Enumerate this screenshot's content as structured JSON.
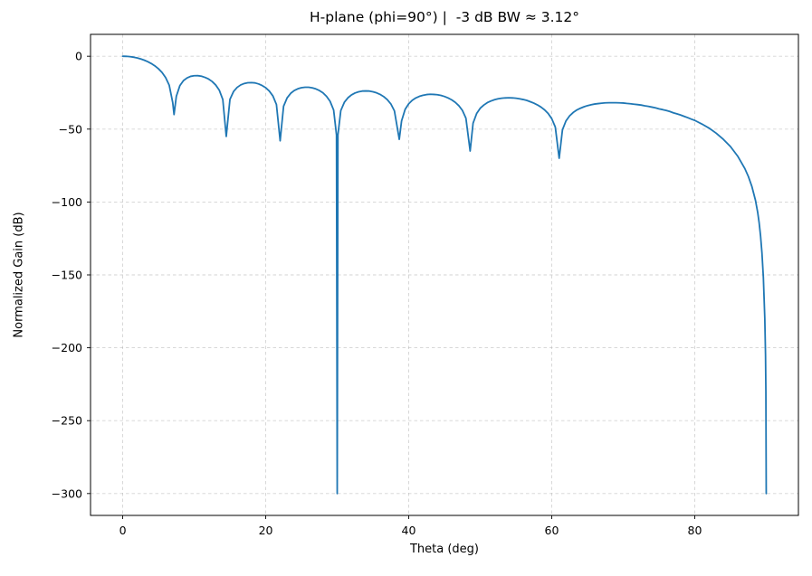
{
  "figure": {
    "background": "#ffffff"
  },
  "chart_data": {
    "type": "line",
    "title": "H-plane (phi=90°) |  -3 dB BW ≈ 3.12°",
    "xlabel": "Theta (deg)",
    "ylabel": "Normalized Gain (dB)",
    "xlim": [
      -4.5,
      94.5
    ],
    "ylim": [
      -315,
      15
    ],
    "x_axis_range_deg": [
      0,
      90
    ],
    "y_axis_range_db": [
      -300,
      0
    ],
    "grid": true,
    "grid_style": "dashed",
    "legend_position": "none",
    "line_color": "#1f77b4",
    "grid_color": "#b0b0b0",
    "spine_color": "#000000",
    "xticks": [
      {
        "v": 0,
        "label": "0"
      },
      {
        "v": 20,
        "label": "20"
      },
      {
        "v": 40,
        "label": "40"
      },
      {
        "v": 60,
        "label": "60"
      },
      {
        "v": 80,
        "label": "80"
      }
    ],
    "yticks": [
      {
        "v": 0,
        "label": "0"
      },
      {
        "v": -50,
        "label": "−50"
      },
      {
        "v": -100,
        "label": "−100"
      },
      {
        "v": -150,
        "label": "−150"
      },
      {
        "v": -200,
        "label": "−200"
      },
      {
        "v": -250,
        "label": "−250"
      },
      {
        "v": -300,
        "label": "−300"
      }
    ],
    "annotations": {
      "main_lobe_peak_db": 0,
      "beamwidth_deg": 3.12,
      "null_angles_deg": [
        7.18,
        14.48,
        22.02,
        30.0,
        38.68,
        48.59,
        61.04,
        90.0
      ],
      "deep_null_clip_db": -300,
      "sidelobe_peaks_db": [
        -13.4,
        -18.1,
        -21.3,
        -23.8,
        -26.1,
        -28.5,
        -31.9
      ]
    },
    "points": [
      [
        0,
        0
      ],
      [
        0.5,
        -0.07
      ],
      [
        1,
        -0.28
      ],
      [
        1.5,
        -0.63
      ],
      [
        2,
        -1.14
      ],
      [
        2.5,
        -1.82
      ],
      [
        3,
        -2.68
      ],
      [
        3.5,
        -3.75
      ],
      [
        4,
        -5.03
      ],
      [
        4.5,
        -6.62
      ],
      [
        5,
        -8.61
      ],
      [
        5.5,
        -11.1
      ],
      [
        6,
        -14.62
      ],
      [
        6.5,
        -19.8
      ],
      [
        7,
        -31.9
      ],
      [
        7.18,
        -40
      ],
      [
        7.5,
        -27.5
      ],
      [
        8,
        -20.1
      ],
      [
        8.5,
        -16.7
      ],
      [
        9,
        -14.9
      ],
      [
        9.5,
        -13.8
      ],
      [
        10,
        -13.4
      ],
      [
        10.5,
        -13.35
      ],
      [
        11,
        -13.7
      ],
      [
        11.5,
        -14.5
      ],
      [
        12,
        -15.6
      ],
      [
        12.5,
        -17.3
      ],
      [
        13,
        -19.7
      ],
      [
        13.5,
        -23.2
      ],
      [
        14,
        -29.7
      ],
      [
        14.48,
        -55
      ],
      [
        15,
        -29.6
      ],
      [
        15.5,
        -24.2
      ],
      [
        16,
        -21.4
      ],
      [
        16.5,
        -19.7
      ],
      [
        17,
        -18.7
      ],
      [
        17.5,
        -18.2
      ],
      [
        18,
        -18.1
      ],
      [
        18.5,
        -18.3
      ],
      [
        19,
        -19.0
      ],
      [
        19.5,
        -20.1
      ],
      [
        20,
        -21.6
      ],
      [
        20.5,
        -23.9
      ],
      [
        21,
        -27.2
      ],
      [
        21.5,
        -33.1
      ],
      [
        22.02,
        -58
      ],
      [
        22.5,
        -34.3
      ],
      [
        23,
        -28.5
      ],
      [
        23.5,
        -25.4
      ],
      [
        24,
        -23.5
      ],
      [
        24.5,
        -22.3
      ],
      [
        25,
        -21.6
      ],
      [
        25.5,
        -21.3
      ],
      [
        26,
        -21.3
      ],
      [
        26.5,
        -21.7
      ],
      [
        27,
        -22.4
      ],
      [
        27.5,
        -23.5
      ],
      [
        28,
        -25.1
      ],
      [
        28.5,
        -27.5
      ],
      [
        29,
        -30.9
      ],
      [
        29.5,
        -36.9
      ],
      [
        29.9,
        -54
      ],
      [
        30,
        -300
      ],
      [
        30.1,
        -54
      ],
      [
        30.5,
        -37.3
      ],
      [
        31,
        -31.6
      ],
      [
        31.5,
        -28.5
      ],
      [
        32,
        -26.5
      ],
      [
        32.5,
        -25.2
      ],
      [
        33,
        -24.4
      ],
      [
        33.5,
        -23.9
      ],
      [
        34,
        -23.8
      ],
      [
        34.5,
        -23.9
      ],
      [
        35,
        -24.4
      ],
      [
        35.5,
        -25.1
      ],
      [
        36,
        -26.2
      ],
      [
        36.5,
        -27.7
      ],
      [
        37,
        -29.8
      ],
      [
        37.5,
        -32.7
      ],
      [
        38,
        -37.5
      ],
      [
        38.68,
        -57
      ],
      [
        39,
        -44.4
      ],
      [
        39.5,
        -36.4
      ],
      [
        40,
        -32.6
      ],
      [
        40.5,
        -30.2
      ],
      [
        41,
        -28.6
      ],
      [
        41.5,
        -27.5
      ],
      [
        42,
        -26.8
      ],
      [
        42.5,
        -26.3
      ],
      [
        43,
        -26.1
      ],
      [
        43.5,
        -26.2
      ],
      [
        44,
        -26.4
      ],
      [
        44.5,
        -26.9
      ],
      [
        45,
        -27.6
      ],
      [
        45.5,
        -28.6
      ],
      [
        46,
        -29.9
      ],
      [
        46.5,
        -31.6
      ],
      [
        47,
        -33.9
      ],
      [
        47.5,
        -37.1
      ],
      [
        48,
        -42.5
      ],
      [
        48.59,
        -65
      ],
      [
        49,
        -45.9
      ],
      [
        49.5,
        -39.3
      ],
      [
        50,
        -35.7
      ],
      [
        50.5,
        -33.5
      ],
      [
        51,
        -31.8
      ],
      [
        51.5,
        -30.7
      ],
      [
        52,
        -29.8
      ],
      [
        52.5,
        -29.2
      ],
      [
        53,
        -28.8
      ],
      [
        53.5,
        -28.6
      ],
      [
        54,
        -28.5
      ],
      [
        54.5,
        -28.6
      ],
      [
        55,
        -28.8
      ],
      [
        55.5,
        -29.2
      ],
      [
        56,
        -29.7
      ],
      [
        56.5,
        -30.3
      ],
      [
        57,
        -31.2
      ],
      [
        57.5,
        -32.2
      ],
      [
        58,
        -33.4
      ],
      [
        58.5,
        -34.9
      ],
      [
        59,
        -36.8
      ],
      [
        59.5,
        -39.3
      ],
      [
        60,
        -42.8
      ],
      [
        60.5,
        -48.6
      ],
      [
        61.04,
        -70
      ],
      [
        61.5,
        -50.5
      ],
      [
        62,
        -44.3
      ],
      [
        62.5,
        -40.9
      ],
      [
        63,
        -38.6
      ],
      [
        63.5,
        -36.9
      ],
      [
        64,
        -35.7
      ],
      [
        64.5,
        -34.7
      ],
      [
        65,
        -33.9
      ],
      [
        65.5,
        -33.3
      ],
      [
        66,
        -32.8
      ],
      [
        66.5,
        -32.5
      ],
      [
        67,
        -32.2
      ],
      [
        67.5,
        -32.0
      ],
      [
        68,
        -31.9
      ],
      [
        68.5,
        -31.9
      ],
      [
        69,
        -31.9
      ],
      [
        69.5,
        -32.0
      ],
      [
        70,
        -32.1
      ],
      [
        70.5,
        -32.4
      ],
      [
        71,
        -32.6
      ],
      [
        71.5,
        -32.9
      ],
      [
        72,
        -33.2
      ],
      [
        72.5,
        -33.5
      ],
      [
        73,
        -34.0
      ],
      [
        73.5,
        -34.4
      ],
      [
        74,
        -34.9
      ],
      [
        74.5,
        -35.4
      ],
      [
        75,
        -36.1
      ],
      [
        75.5,
        -36.6
      ],
      [
        76,
        -37.2
      ],
      [
        76.5,
        -37.9
      ],
      [
        77,
        -38.8
      ],
      [
        77.5,
        -39.5
      ],
      [
        78,
        -40.3
      ],
      [
        78.5,
        -41.2
      ],
      [
        79,
        -42.1
      ],
      [
        79.5,
        -43.1
      ],
      [
        80,
        -44.0
      ],
      [
        81,
        -46.5
      ],
      [
        82,
        -49.3
      ],
      [
        83,
        -52.8
      ],
      [
        84,
        -57.0
      ],
      [
        85,
        -62.0
      ],
      [
        86,
        -68.5
      ],
      [
        87,
        -77.0
      ],
      [
        87.5,
        -82.5
      ],
      [
        88,
        -89.5
      ],
      [
        88.5,
        -99
      ],
      [
        88.8,
        -107
      ],
      [
        89,
        -114
      ],
      [
        89.2,
        -123
      ],
      [
        89.4,
        -135
      ],
      [
        89.6,
        -152
      ],
      [
        89.8,
        -180
      ],
      [
        89.9,
        -205
      ],
      [
        89.95,
        -230
      ],
      [
        90,
        -300
      ]
    ]
  }
}
